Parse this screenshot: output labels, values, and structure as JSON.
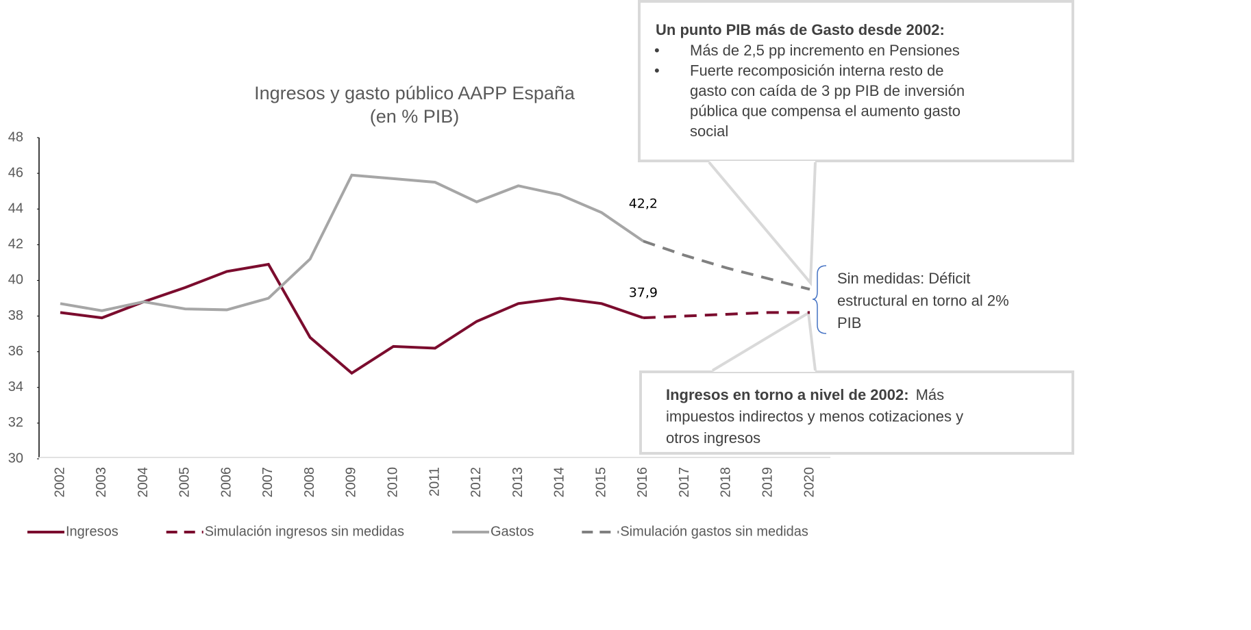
{
  "chart_data": {
    "type": "line",
    "title": "Ingresos y gasto público AAPP España",
    "subtitle": "(en % PIB)",
    "categories": [
      "2002",
      "2003",
      "2004",
      "2005",
      "2006",
      "2007",
      "2008",
      "2009",
      "2010",
      "2011",
      "2012",
      "2013",
      "2014",
      "2015",
      "2016",
      "2017",
      "2018",
      "2019",
      "2020"
    ],
    "ylim": [
      30,
      48
    ],
    "yticks": [
      30,
      32,
      34,
      36,
      38,
      40,
      42,
      44,
      46,
      48
    ],
    "series": [
      {
        "name": "Ingresos",
        "color": "#7b0c2e",
        "dashed": false,
        "values": [
          38.2,
          37.9,
          38.8,
          39.6,
          40.5,
          40.9,
          36.8,
          34.8,
          36.3,
          36.2,
          37.7,
          38.7,
          39.0,
          38.7,
          37.9,
          null,
          null,
          null,
          null
        ],
        "value_labels": [
          null,
          null,
          null,
          null,
          null,
          null,
          null,
          null,
          null,
          null,
          null,
          null,
          null,
          null,
          "37,9",
          null,
          null,
          null,
          null
        ]
      },
      {
        "name": "Simulación ingresos sin medidas",
        "color": "#7b0c2e",
        "dashed": true,
        "values": [
          null,
          null,
          null,
          null,
          null,
          null,
          null,
          null,
          null,
          null,
          null,
          null,
          null,
          null,
          37.9,
          38.0,
          38.1,
          38.2,
          38.2
        ]
      },
      {
        "name": "Gastos",
        "color": "#a6a6a6",
        "dashed": false,
        "values": [
          38.7,
          38.3,
          38.8,
          38.4,
          38.35,
          39.0,
          41.2,
          45.9,
          45.7,
          45.5,
          44.4,
          45.3,
          44.8,
          43.8,
          42.2,
          null,
          null,
          null,
          null
        ],
        "value_labels": [
          null,
          null,
          null,
          null,
          null,
          null,
          null,
          null,
          null,
          null,
          null,
          null,
          null,
          null,
          "42,2",
          null,
          null,
          null,
          null
        ]
      },
      {
        "name": "Simulación gastos sin medidas",
        "color": "#808080",
        "dashed": true,
        "values": [
          null,
          null,
          null,
          null,
          null,
          null,
          null,
          null,
          null,
          null,
          null,
          null,
          null,
          null,
          42.2,
          41.4,
          40.7,
          40.1,
          39.5
        ]
      }
    ],
    "annotations": {
      "gasto_box": {
        "heading": "Un punto PIB más de Gasto desde 2002:",
        "bullets": [
          [
            "Más de 2,5 pp incremento en Pensiones"
          ],
          [
            "Fuerte recomposición interna resto de",
            "gasto con caída de 3 pp PIB de inversión",
            "pública que compensa el aumento gasto",
            "social"
          ]
        ]
      },
      "deficit_note": [
        "Sin medidas: Déficit",
        "estructural en torno al 2%",
        "PIB"
      ],
      "ingresos_box": {
        "heading": "Ingresos en torno a nivel de 2002:",
        "lines": [
          "Más",
          "impuestos indirectos y menos cotizaciones y",
          "otros ingresos"
        ]
      }
    }
  }
}
